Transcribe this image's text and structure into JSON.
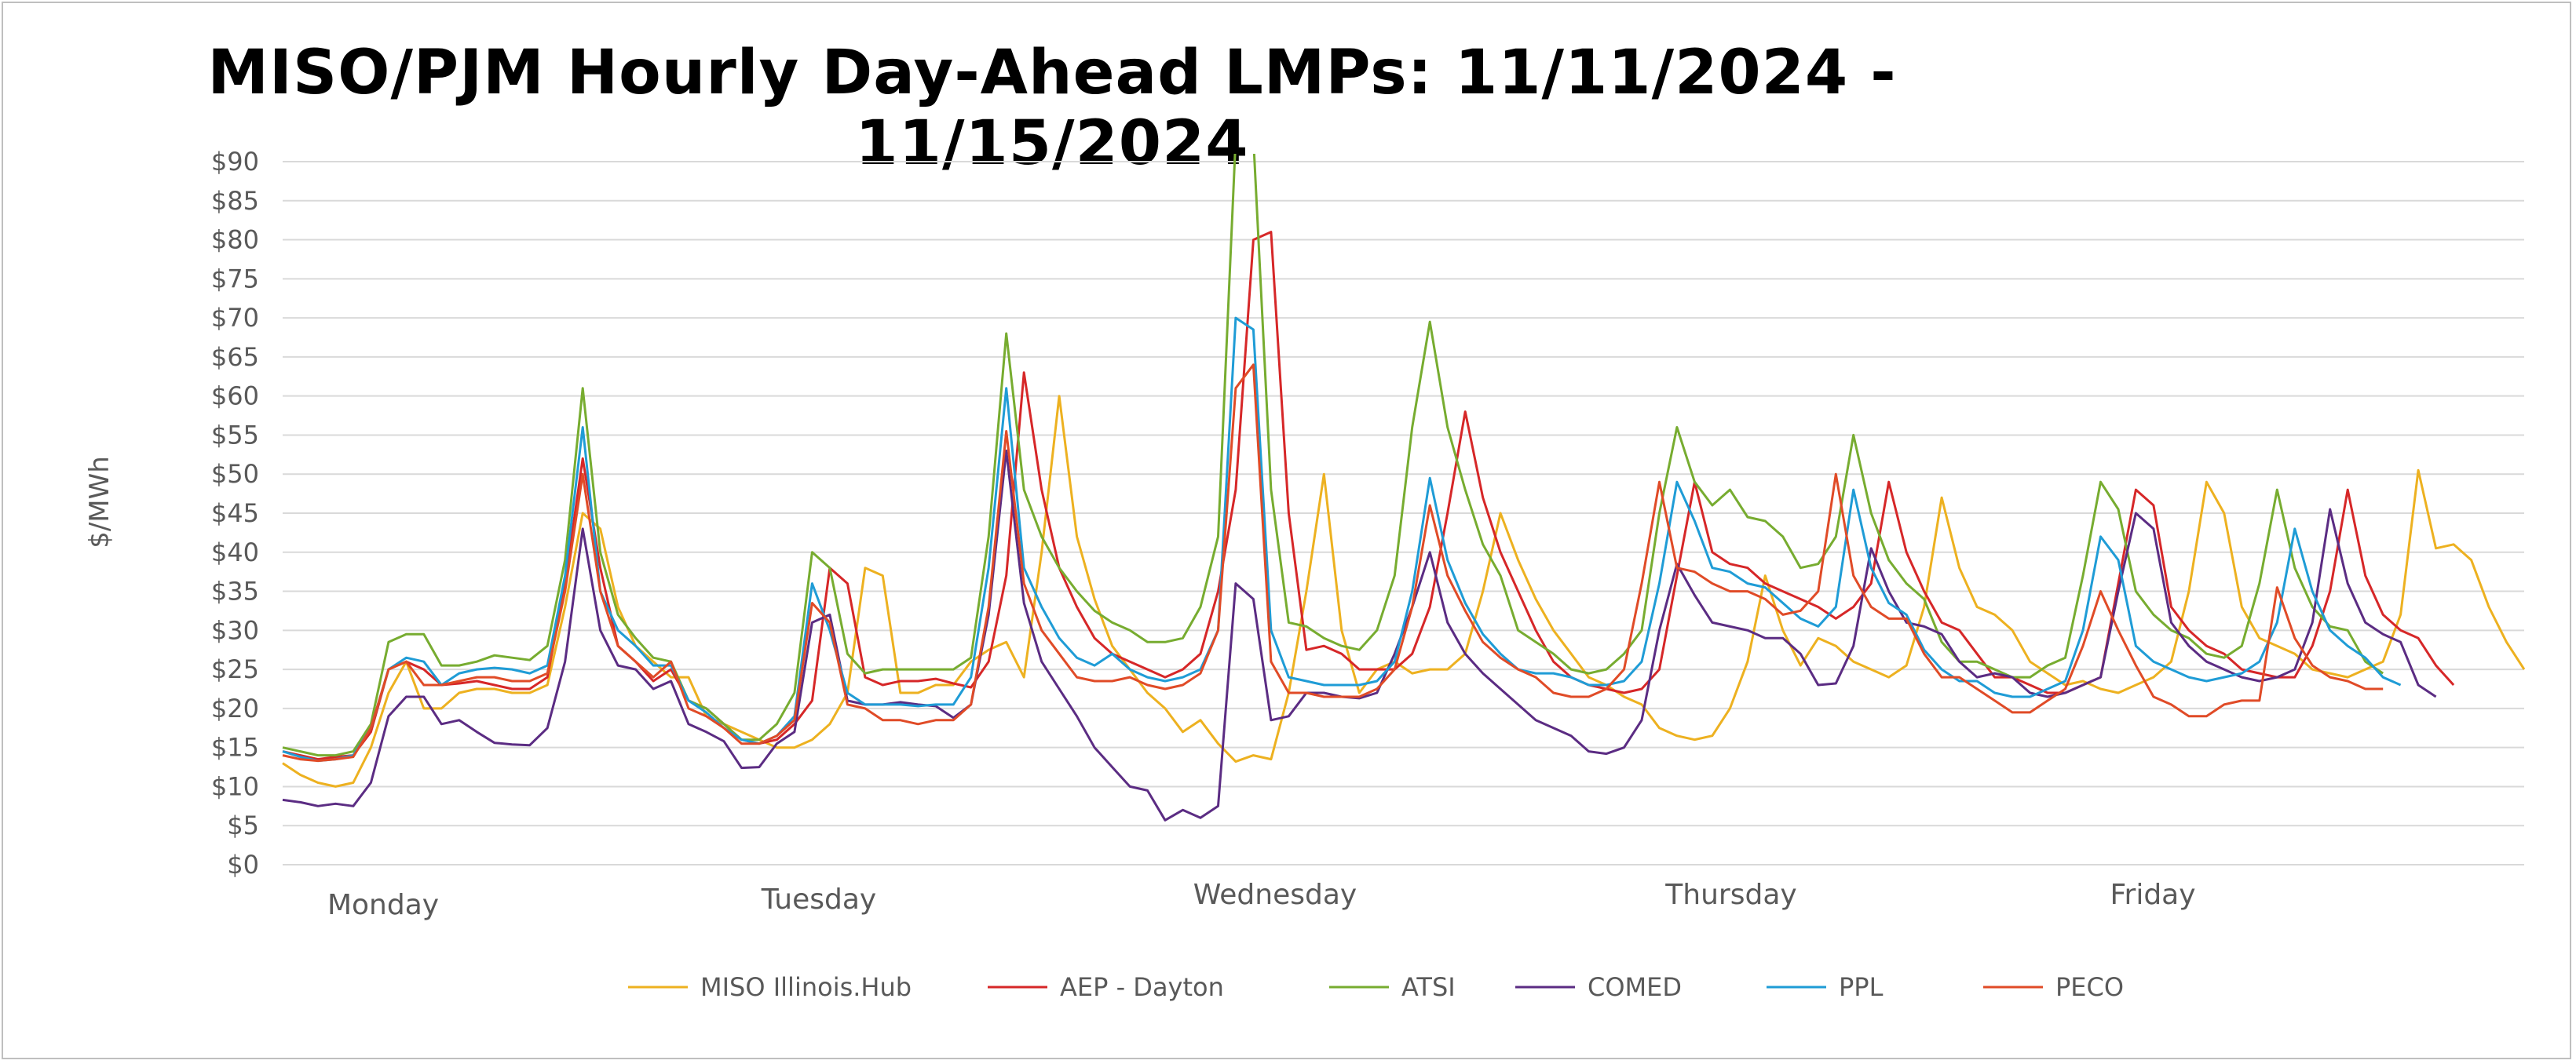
{
  "chart_data": {
    "type": "line",
    "title": "MISO/PJM Hourly Day-Ahead LMPs: 11/11/2024 - 11/15/2024",
    "ylabel": "$/MWh",
    "xlabel": "",
    "ylim": [
      0,
      90
    ],
    "yticks": [
      "$0",
      "$5",
      "$10",
      "$15",
      "$20",
      "$25",
      "$30",
      "$35",
      "$40",
      "$45",
      "$50",
      "$55",
      "$60",
      "$65",
      "$70",
      "$75",
      "$80",
      "$85",
      "$90"
    ],
    "days": [
      "Monday",
      "Tuesday",
      "Wednesday",
      "Thursday",
      "Friday"
    ],
    "grid": "horizontal",
    "legend_position": "bottom",
    "series": [
      {
        "name": "MISO Illinois.Hub",
        "color": "#EDB120",
        "values": [
          13,
          11.5,
          10.5,
          10,
          10.5,
          15,
          22,
          26,
          20,
          20,
          22,
          22.5,
          22.5,
          22,
          22,
          23,
          33,
          45,
          43,
          33,
          28,
          26,
          24,
          24,
          19,
          18,
          17,
          16,
          15,
          15,
          16,
          18,
          22,
          38,
          37,
          22,
          22,
          23,
          23,
          26,
          27.5,
          28.5,
          24,
          40,
          60,
          42,
          34,
          28,
          25,
          22,
          20,
          17,
          18.5,
          15.5,
          13.2,
          14,
          13.5,
          22,
          35,
          50,
          30,
          22,
          25,
          26,
          24.5,
          25,
          25,
          27,
          35,
          45,
          39,
          34,
          30,
          27,
          24,
          23,
          21.5,
          20.5,
          17.5,
          16.5,
          16,
          16.5,
          20,
          26,
          37,
          30,
          25.5,
          29,
          28,
          26,
          25,
          24,
          25.5,
          33,
          47,
          38,
          33,
          32,
          30,
          26,
          24.5,
          23,
          23.5,
          22.5,
          22,
          23,
          24,
          26,
          35,
          49,
          45,
          33,
          29,
          28,
          27,
          25,
          24.5,
          24,
          25,
          26,
          32,
          50.5,
          40.5,
          41,
          39,
          33,
          28.5,
          25
        ]
      },
      {
        "name": "AEP - Dayton",
        "color": "#D62728",
        "values": [
          14.5,
          14,
          13.5,
          13.8,
          14,
          17,
          25,
          26,
          25,
          23,
          23.2,
          23.5,
          23,
          22.5,
          22.5,
          24,
          36,
          52,
          38,
          28,
          26,
          23.5,
          25,
          21,
          20,
          18,
          16,
          15.5,
          16,
          18,
          21,
          38,
          36,
          24,
          23,
          23.5,
          23.5,
          23.8,
          23.2,
          22.7,
          26,
          37,
          63,
          48,
          38,
          33,
          29,
          27,
          26,
          25,
          24,
          25,
          27,
          35,
          48,
          80,
          81,
          45,
          27.5,
          28,
          27,
          25,
          25,
          25,
          27,
          33,
          45,
          58,
          47,
          40,
          35,
          30,
          26,
          24,
          23,
          22.5,
          22,
          22.5,
          25,
          37,
          49,
          40,
          38.5,
          38,
          36,
          35,
          34,
          33,
          31.5,
          33,
          36,
          49,
          40,
          35,
          31,
          30,
          27,
          24,
          24,
          23,
          22,
          22,
          23,
          24,
          36,
          48,
          46,
          33,
          30,
          28,
          27,
          25,
          24.5,
          24,
          24,
          28,
          35,
          48,
          37,
          32,
          30,
          29,
          25.5,
          23
        ]
      },
      {
        "name": "ATSI",
        "color": "#77AC30",
        "values": [
          15,
          14.5,
          14,
          14,
          14.5,
          18,
          28.5,
          29.5,
          29.5,
          25.5,
          25.5,
          26,
          26.8,
          26.5,
          26.2,
          28,
          39,
          61,
          40,
          32,
          29,
          26.5,
          26,
          21,
          20,
          18,
          16,
          16,
          18,
          22,
          40,
          38,
          27,
          24.5,
          25,
          25,
          25,
          25,
          25,
          26.5,
          42,
          68,
          48,
          42,
          38,
          35,
          32.5,
          31,
          30,
          28.5,
          28.5,
          29,
          33,
          42,
          93,
          93,
          48,
          31,
          30.5,
          29,
          28,
          27.5,
          30,
          37,
          56,
          69.5,
          56,
          48,
          41,
          37,
          30,
          28.5,
          27,
          25,
          24.5,
          25,
          27,
          30,
          45,
          56,
          49,
          46,
          48,
          44.5,
          44,
          42,
          38,
          38.5,
          42,
          55,
          45,
          39,
          36,
          34,
          28.5,
          26,
          26,
          25,
          24,
          24,
          25.5,
          26.5,
          37,
          49,
          45.5,
          35,
          32,
          30,
          29,
          27,
          26.5,
          28,
          36,
          48,
          38,
          33,
          30.5,
          30,
          26,
          24.5
        ]
      },
      {
        "name": "COMED",
        "color": "#5B2C83",
        "values": [
          8.3,
          8,
          7.5,
          7.8,
          7.5,
          10.5,
          19,
          21.5,
          21.5,
          18,
          18.5,
          17,
          15.6,
          15.4,
          15.3,
          17.5,
          26,
          43,
          30,
          25.5,
          25,
          22.5,
          23.5,
          18,
          17,
          15.8,
          12.4,
          12.5,
          15.5,
          17,
          31,
          32,
          21,
          20.5,
          20.5,
          20.8,
          20.5,
          20.3,
          18.8,
          20.5,
          32,
          53,
          33.5,
          26,
          22.5,
          19,
          15,
          12.5,
          10,
          9.5,
          5.7,
          7,
          6,
          7.5,
          36,
          34,
          18.5,
          19,
          22,
          22,
          21.5,
          21.3,
          22,
          27,
          33,
          40,
          31,
          27,
          24.5,
          22.5,
          20.5,
          18.5,
          17.5,
          16.5,
          14.5,
          14.2,
          15,
          18.5,
          30,
          38.5,
          34.5,
          31,
          30.5,
          30,
          29,
          29,
          27,
          23,
          23.2,
          28,
          40.5,
          35,
          31,
          30.5,
          29.5,
          26,
          24,
          24.5,
          24,
          22,
          21.5,
          22,
          23,
          24,
          35,
          45,
          43,
          31,
          28,
          26,
          25,
          24,
          23.5,
          24,
          25,
          31,
          45.5,
          36,
          31,
          29.5,
          28.5,
          23,
          21.5
        ]
      },
      {
        "name": "PPL",
        "color": "#1F9CD6",
        "values": [
          14.5,
          13.8,
          13.3,
          13.5,
          14,
          17.5,
          25,
          26.5,
          26,
          23,
          24.5,
          25,
          25.2,
          25,
          24.5,
          25.5,
          37,
          56,
          35,
          30,
          28,
          25.5,
          25.5,
          21,
          19.5,
          17.5,
          16,
          15.5,
          16.5,
          19,
          36,
          30,
          22,
          20.5,
          20.5,
          20.5,
          20.3,
          20.5,
          20.5,
          24,
          38,
          61,
          38,
          33,
          29,
          26.5,
          25.5,
          27,
          25,
          24,
          23.5,
          24,
          25,
          30,
          70,
          68.5,
          30,
          24,
          23.5,
          23,
          23,
          23,
          23.5,
          26,
          35,
          49.5,
          39,
          33.5,
          29.5,
          27,
          25,
          24.5,
          24.5,
          24,
          23,
          23,
          23.5,
          26,
          36,
          49,
          44,
          38,
          37.5,
          36,
          35.5,
          33.5,
          31.5,
          30.5,
          33,
          48,
          38,
          33.5,
          32,
          27.5,
          25,
          23.5,
          23.5,
          22,
          21.5,
          21.5,
          22.5,
          23.5,
          30,
          42,
          39,
          28,
          26,
          25,
          24,
          23.5,
          24,
          24.5,
          26,
          31,
          43,
          35,
          30,
          28,
          26.5,
          24,
          23
        ]
      },
      {
        "name": "PECO",
        "color": "#E04B27",
        "values": [
          14,
          13.5,
          13.3,
          13.5,
          13.8,
          17.5,
          25,
          26,
          23,
          23,
          23.5,
          24,
          24,
          23.5,
          23.5,
          24.5,
          35,
          50,
          35,
          28,
          26,
          24,
          26,
          20,
          19,
          17.5,
          15.5,
          15.5,
          16.5,
          18.5,
          33.5,
          31,
          20.5,
          20,
          18.5,
          18.5,
          18,
          18.5,
          18.5,
          20.5,
          33,
          55.5,
          36,
          30,
          27,
          24,
          23.5,
          23.5,
          24,
          23,
          22.5,
          23,
          24.5,
          30,
          61,
          64,
          26,
          22,
          22,
          21.5,
          21.5,
          21.5,
          22.5,
          25,
          33,
          46,
          37,
          32.5,
          28.5,
          26.5,
          25,
          24,
          22,
          21.5,
          21.5,
          22.5,
          25,
          36,
          49,
          38,
          37.5,
          36,
          35,
          35,
          34,
          32,
          32.5,
          35,
          50,
          37,
          33,
          31.5,
          31.5,
          27,
          24,
          24,
          22.5,
          21,
          19.5,
          19.5,
          21,
          22.5,
          28,
          35,
          30,
          25.5,
          21.5,
          20.5,
          19,
          19,
          20.5,
          21,
          21,
          35.5,
          29,
          25.5,
          24,
          23.5,
          22.5,
          22.5
        ]
      }
    ]
  }
}
